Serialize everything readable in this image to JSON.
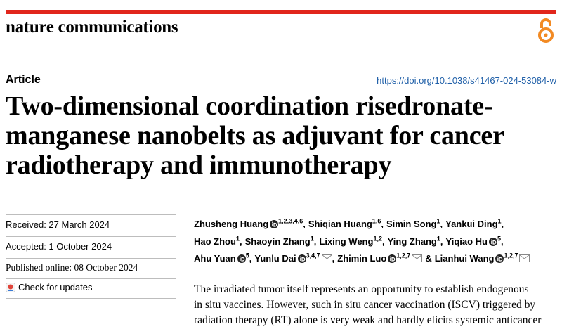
{
  "journal": "nature communications",
  "article_type": "Article",
  "doi": "https://doi.org/10.1038/s41467-024-53084-w",
  "title_lines": [
    "Two-dimensional coordination risedronate-",
    "manganese nanobelts as adjuvant for cancer",
    "radiotherapy and immunotherapy"
  ],
  "dates": {
    "received": "Received: 27 March 2024",
    "accepted": "Accepted: 1 October 2024",
    "published": "Published online: 08 October 2024"
  },
  "check_updates": "Check for updates",
  "authors": [
    [
      {
        "name": "Zhusheng Huang",
        "orcid": true,
        "affil": "1,2,3,4,6",
        "sep": ","
      },
      {
        "name": "Shiqian Huang",
        "affil": "1,6",
        "sep": ","
      },
      {
        "name": "Simin Song",
        "affil": "1",
        "sep": ","
      },
      {
        "name": "Yankui Ding",
        "affil": "1",
        "sep": ","
      }
    ],
    [
      {
        "name": "Hao Zhou",
        "affil": "1",
        "sep": ","
      },
      {
        "name": "Shaoyin Zhang",
        "affil": "1",
        "sep": ","
      },
      {
        "name": "Lixing Weng",
        "affil": "1,2",
        "sep": ","
      },
      {
        "name": "Ying Zhang",
        "affil": "1",
        "sep": ","
      },
      {
        "name": "Yiqiao Hu",
        "orcid": true,
        "affil": "5",
        "sep": ","
      }
    ],
    [
      {
        "name": "Ahu Yuan",
        "orcid": true,
        "affil": "5",
        "sep": ","
      },
      {
        "name": "Yunlu Dai",
        "orcid": true,
        "affil": "3,4,7",
        "email": true,
        "sep": ","
      },
      {
        "name": "Zhimin Luo",
        "orcid": true,
        "affil": "1,2,7",
        "email": true,
        "sep": "&"
      },
      {
        "name": "Lianhui Wang",
        "orcid": true,
        "affil": "1,2,7",
        "email": true
      }
    ]
  ],
  "abstract_lines": [
    "The irradiated tumor itself represents an opportunity to establish endogenous",
    "in situ vaccines. However, such in situ cancer vaccination (ISCV) triggered by",
    "radiation therapy (RT) alone is very weak and hardly elicits systemic anticancer"
  ]
}
